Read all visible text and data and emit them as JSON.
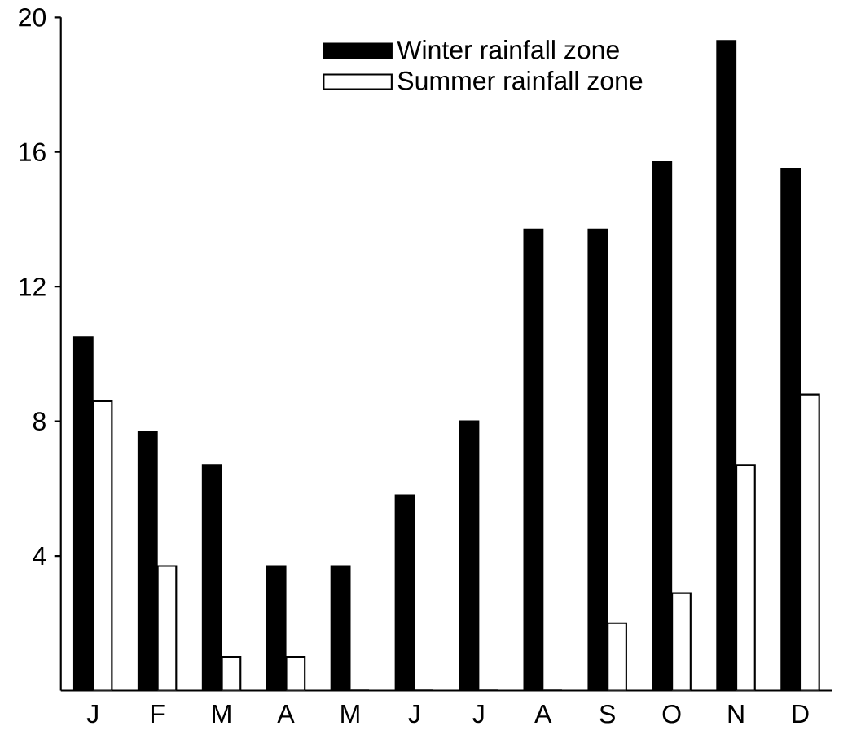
{
  "chart_data": {
    "type": "bar",
    "categories": [
      "J",
      "F",
      "M",
      "A",
      "M",
      "J",
      "J",
      "A",
      "S",
      "O",
      "N",
      "D"
    ],
    "series": [
      {
        "name": "Winter rainfall zone",
        "color": "#000000",
        "values": [
          10.5,
          7.7,
          6.7,
          3.7,
          3.7,
          5.8,
          8.0,
          13.7,
          13.7,
          15.7,
          19.3,
          15.5
        ]
      },
      {
        "name": "Summer rainfall zone",
        "color": "#ffffff",
        "values": [
          8.6,
          3.7,
          1.0,
          1.0,
          0,
          0,
          0,
          0,
          2.0,
          2.9,
          6.7,
          8.8
        ]
      }
    ],
    "ylim": [
      0,
      20
    ],
    "yticks": [
      4,
      8,
      12,
      16,
      20
    ],
    "grid": false,
    "legend": "top"
  }
}
